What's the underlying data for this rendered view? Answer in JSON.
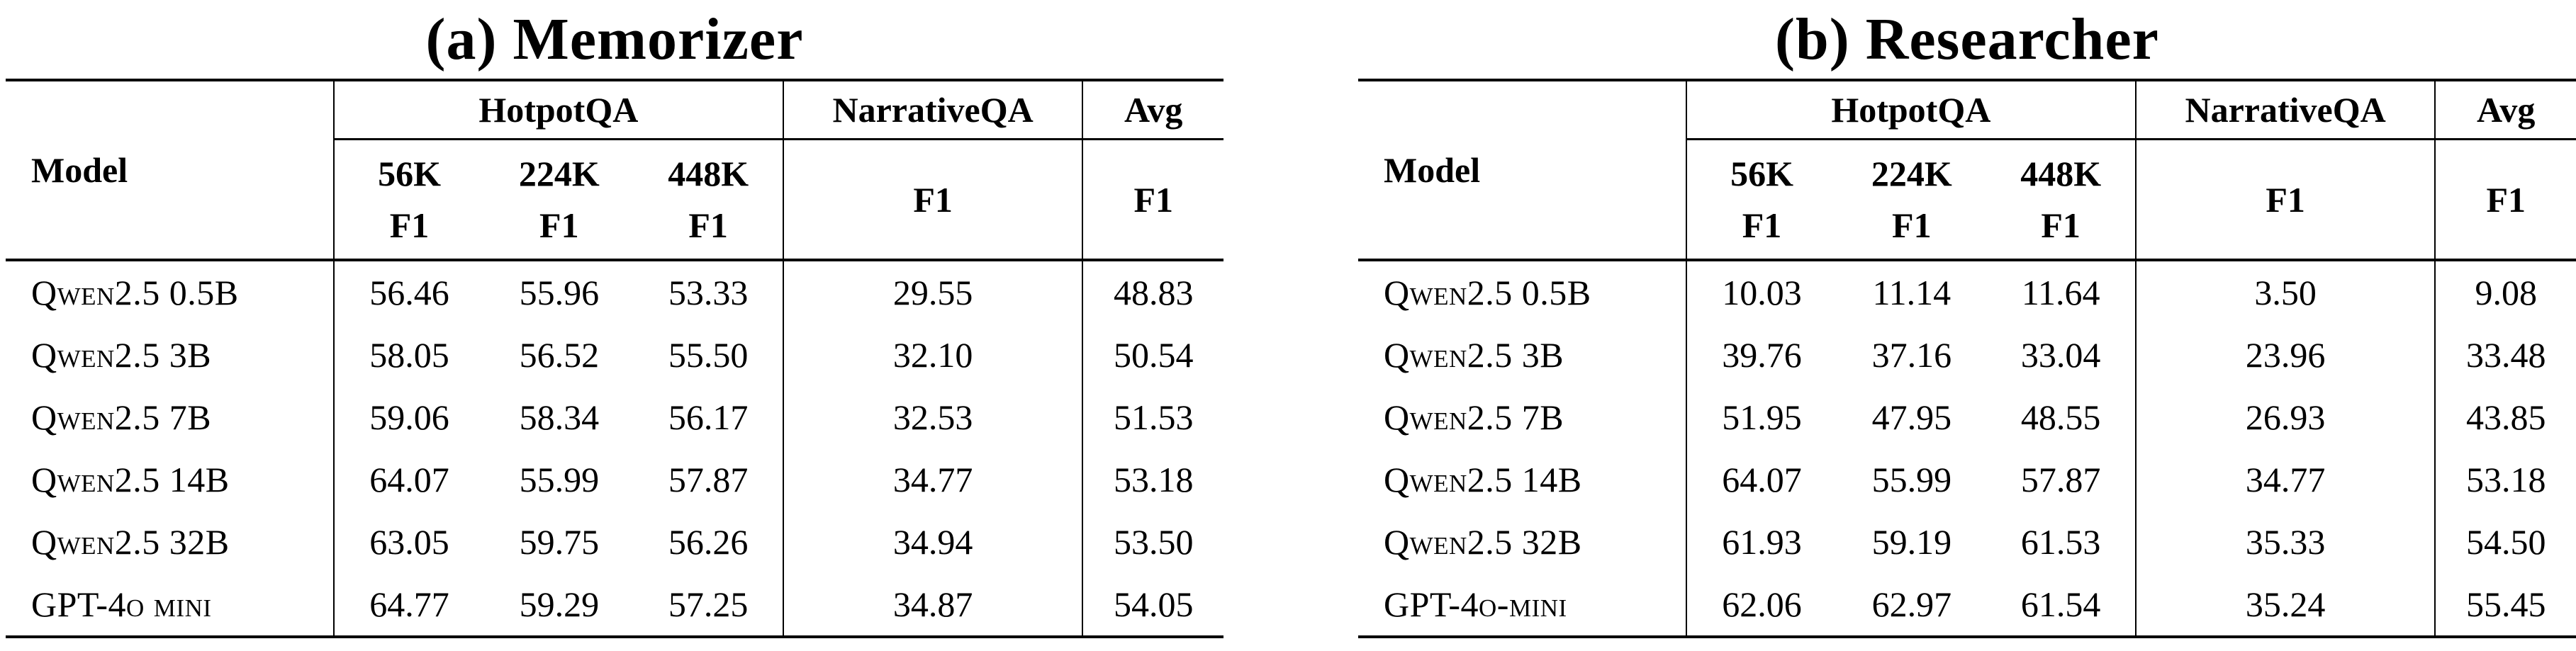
{
  "accent_colors": {
    "text": "#000000",
    "background": "#ffffff",
    "rules": "#000000"
  },
  "tables": [
    {
      "title": "(a) Memorizer",
      "header": {
        "model": "Model",
        "hotpotqa": "HotpotQA",
        "narrativeqa": "NarrativeQA",
        "avg": "Avg",
        "sizes": [
          "56K",
          "224K",
          "448K"
        ],
        "f1": "F1"
      },
      "rows": [
        {
          "model": "Qwen2.5 0.5B",
          "values": [
            "56.46",
            "55.96",
            "53.33",
            "29.55",
            "48.83"
          ]
        },
        {
          "model": "Qwen2.5 3B",
          "values": [
            "58.05",
            "56.52",
            "55.50",
            "32.10",
            "50.54"
          ]
        },
        {
          "model": "Qwen2.5 7B",
          "values": [
            "59.06",
            "58.34",
            "56.17",
            "32.53",
            "51.53"
          ]
        },
        {
          "model": "Qwen2.5 14B",
          "values": [
            "64.07",
            "55.99",
            "57.87",
            "34.77",
            "53.18"
          ]
        },
        {
          "model": "Qwen2.5 32B",
          "values": [
            "63.05",
            "59.75",
            "56.26",
            "34.94",
            "53.50"
          ]
        },
        {
          "model": "GPT-4o mini",
          "values": [
            "64.77",
            "59.29",
            "57.25",
            "34.87",
            "54.05"
          ]
        }
      ]
    },
    {
      "title": "(b) Researcher",
      "header": {
        "model": "Model",
        "hotpotqa": "HotpotQA",
        "narrativeqa": "NarrativeQA",
        "avg": "Avg",
        "sizes": [
          "56K",
          "224K",
          "448K"
        ],
        "f1": "F1"
      },
      "rows": [
        {
          "model": "Qwen2.5 0.5B",
          "values": [
            "10.03",
            "11.14",
            "11.64",
            "3.50",
            "9.08"
          ]
        },
        {
          "model": "Qwen2.5 3B",
          "values": [
            "39.76",
            "37.16",
            "33.04",
            "23.96",
            "33.48"
          ]
        },
        {
          "model": "Qwen2.5 7B",
          "values": [
            "51.95",
            "47.95",
            "48.55",
            "26.93",
            "43.85"
          ]
        },
        {
          "model": "Qwen2.5 14B",
          "values": [
            "64.07",
            "55.99",
            "57.87",
            "34.77",
            "53.18"
          ]
        },
        {
          "model": "Qwen2.5 32B",
          "values": [
            "61.93",
            "59.19",
            "61.53",
            "35.33",
            "54.50"
          ]
        },
        {
          "model": "GPT-4o-mini",
          "values": [
            "62.06",
            "62.97",
            "61.54",
            "35.24",
            "55.45"
          ]
        }
      ]
    }
  ]
}
